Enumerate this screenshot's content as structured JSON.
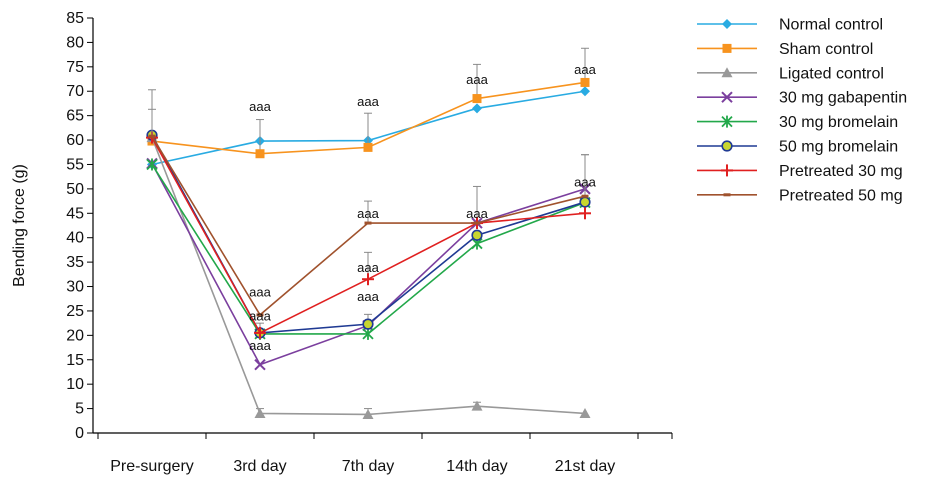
{
  "chart_data": {
    "type": "line",
    "title": "",
    "xlabel": "",
    "ylabel": "Bending force (g)",
    "ylim": [
      0,
      85
    ],
    "yticks": [
      0,
      5,
      10,
      15,
      20,
      25,
      30,
      35,
      40,
      45,
      50,
      55,
      60,
      65,
      70,
      75,
      80,
      85
    ],
    "categories": [
      "Pre-surgery",
      "3rd day",
      "7th day",
      "14th day",
      "21st day"
    ],
    "grid": false,
    "legend_position": "right",
    "series": [
      {
        "name": "Normal control",
        "color": "#29abe2",
        "marker": "diamond",
        "values": [
          55,
          59.8,
          59.9,
          66.5,
          70
        ],
        "errors": [
          0,
          0,
          0,
          0,
          0
        ]
      },
      {
        "name": "Sham control",
        "color": "#f7931e",
        "marker": "square",
        "values": [
          59.8,
          57.2,
          58.5,
          68.5,
          71.8
        ],
        "errors": [
          6.5,
          7,
          7,
          7,
          7
        ]
      },
      {
        "name": "Ligated control",
        "color": "#999999",
        "marker": "triangle",
        "values": [
          60.5,
          4,
          3.8,
          5.5,
          4
        ],
        "errors": [
          0,
          1,
          1.2,
          0.8,
          0
        ]
      },
      {
        "name": "30 mg gabapentin",
        "color": "#7b3f9e",
        "marker": "x",
        "values": [
          55.2,
          14,
          22,
          43,
          50
        ],
        "errors": [
          0,
          0,
          0,
          7.5,
          7
        ]
      },
      {
        "name": "30 mg bromelain",
        "color": "#22a84a",
        "marker": "star",
        "values": [
          55,
          20.3,
          20.3,
          38.8,
          47.2
        ],
        "errors": [
          0,
          0,
          0,
          0,
          0
        ]
      },
      {
        "name": "50 mg bromelain",
        "color": "#1f3a93",
        "marker": "circle",
        "values": [
          61,
          20.5,
          22.3,
          40.5,
          47.3
        ],
        "errors": [
          0,
          0,
          2,
          0,
          0
        ]
      },
      {
        "name": "Pretreated 30 mg",
        "color": "#e02020",
        "marker": "plus",
        "values": [
          60.5,
          20.5,
          31.5,
          43,
          45
        ],
        "errors": [
          0,
          2,
          5.5,
          0,
          0
        ]
      },
      {
        "name": "Pretreated 50 mg",
        "color": "#a0522d",
        "marker": "dash",
        "values": [
          60.8,
          24.2,
          43,
          43,
          48.5
        ],
        "errors": [
          9.5,
          0,
          4.5,
          0,
          8.5
        ]
      }
    ],
    "annotations": [
      {
        "text": "aaa",
        "x": "3rd day",
        "y": 66
      },
      {
        "text": "aaa",
        "x": "3rd day",
        "y": 28
      },
      {
        "text": "aaa",
        "x": "3rd day",
        "y": 23
      },
      {
        "text": "aaa",
        "x": "3rd day",
        "y": 17
      },
      {
        "text": "aaa",
        "x": "7th day",
        "y": 67
      },
      {
        "text": "aaa",
        "x": "7th day",
        "y": 44
      },
      {
        "text": "aaa",
        "x": "7th day",
        "y": 33
      },
      {
        "text": "aaa",
        "x": "7th day",
        "y": 27
      },
      {
        "text": "aaa",
        "x": "14th day",
        "y": 71.5
      },
      {
        "text": "aaa",
        "x": "14th day",
        "y": 44
      },
      {
        "text": "aaa",
        "x": "21st day",
        "y": 73.5
      },
      {
        "text": "aaa",
        "x": "21st day",
        "y": 50.5
      }
    ]
  }
}
